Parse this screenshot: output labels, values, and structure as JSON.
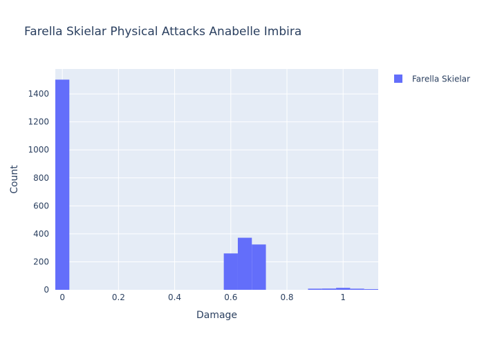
{
  "chart_data": {
    "type": "bar",
    "title": "Farella Skielar Physical Attacks Anabelle Imbira",
    "xlabel": "Damage",
    "ylabel": "Count",
    "xlim": [
      -0.025,
      1.125
    ],
    "ylim": [
      0,
      1578
    ],
    "x_ticks": [
      {
        "value": 0,
        "label": "0"
      },
      {
        "value": 0.2,
        "label": "0.2"
      },
      {
        "value": 0.4,
        "label": "0.4"
      },
      {
        "value": 0.6,
        "label": "0.6"
      },
      {
        "value": 0.8,
        "label": "0.8"
      },
      {
        "value": 1,
        "label": "1"
      }
    ],
    "y_ticks": [
      {
        "value": 0,
        "label": "0"
      },
      {
        "value": 200,
        "label": "200"
      },
      {
        "value": 400,
        "label": "400"
      },
      {
        "value": 600,
        "label": "600"
      },
      {
        "value": 800,
        "label": "800"
      },
      {
        "value": 1000,
        "label": "1000"
      },
      {
        "value": 1200,
        "label": "1200"
      },
      {
        "value": 1400,
        "label": "1400"
      }
    ],
    "grid": true,
    "bin_width": 0.05,
    "legend": {
      "position": "top-right"
    },
    "series": [
      {
        "name": "Farella Skielar",
        "color": "#636efa",
        "bins": [
          {
            "start": -0.025,
            "end": 0.025,
            "count": 1502
          },
          {
            "start": 0.575,
            "end": 0.625,
            "count": 260
          },
          {
            "start": 0.625,
            "end": 0.675,
            "count": 372
          },
          {
            "start": 0.675,
            "end": 0.725,
            "count": 324
          },
          {
            "start": 0.875,
            "end": 0.925,
            "count": 8
          },
          {
            "start": 0.925,
            "end": 0.975,
            "count": 9
          },
          {
            "start": 0.975,
            "end": 1.025,
            "count": 14
          },
          {
            "start": 1.025,
            "end": 1.075,
            "count": 8
          },
          {
            "start": 1.075,
            "end": 1.125,
            "count": 5
          }
        ]
      }
    ]
  }
}
